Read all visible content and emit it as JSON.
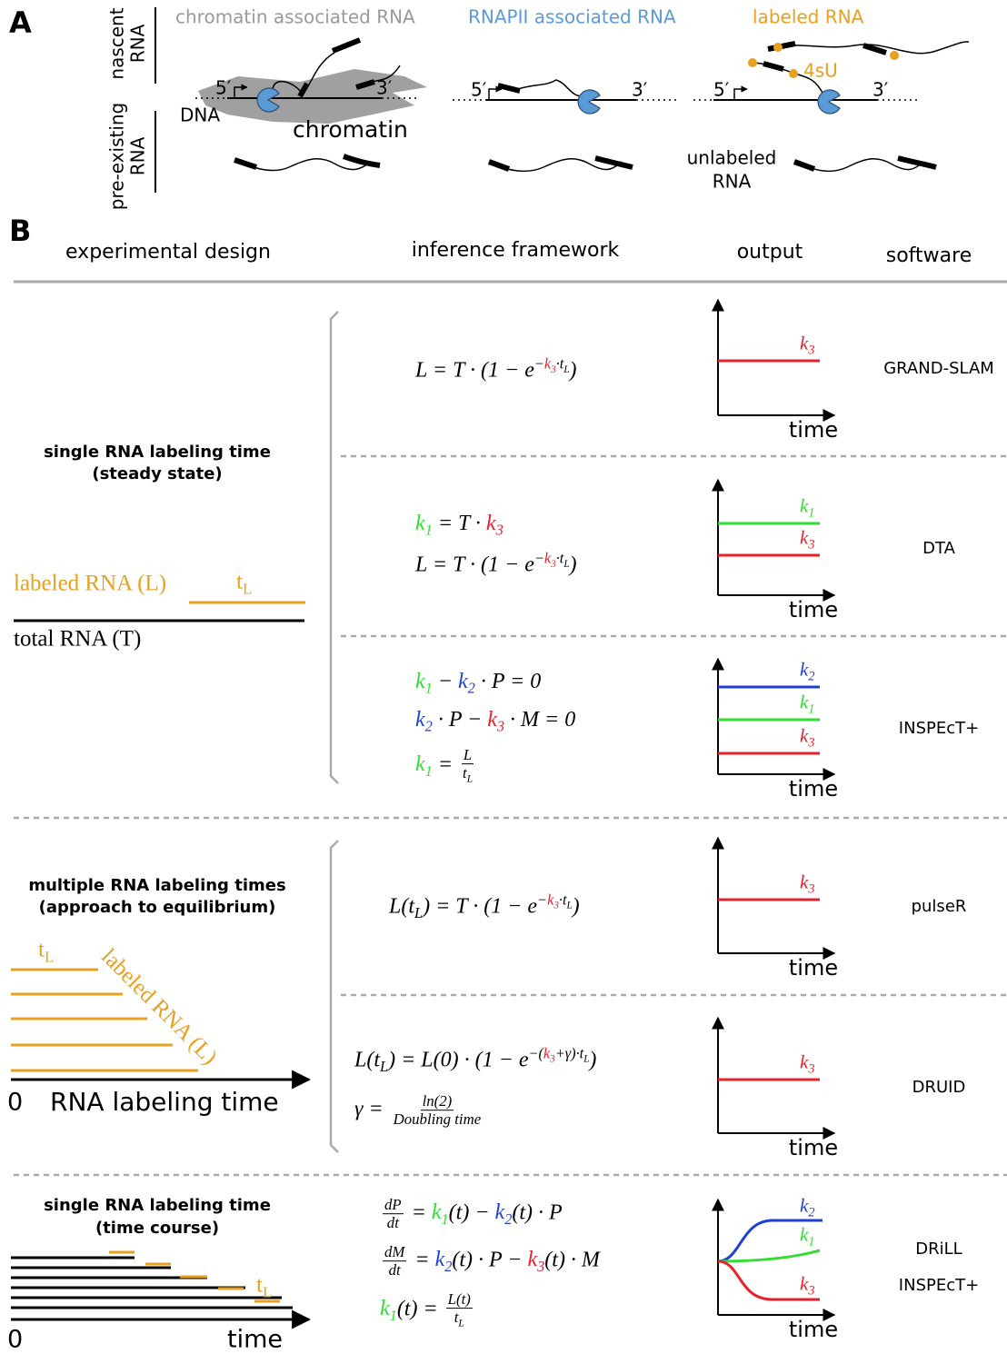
{
  "panel_a": {
    "label": "A",
    "rows": {
      "nascent": [
        "nascent",
        "RNA"
      ],
      "preexisting": [
        "pre-existing",
        "RNA"
      ]
    },
    "columns": [
      {
        "title": "chromatin associated RNA",
        "five": "5′",
        "three": "3′",
        "dna": "DNA",
        "chromatin": "chromatin"
      },
      {
        "title": "RNAPII associated RNA",
        "five": "5′",
        "three": "3′"
      },
      {
        "title": "labeled RNA",
        "five": "5′",
        "three": "3′",
        "label": "4sU",
        "unlabeled": [
          "unlabeled",
          "RNA"
        ]
      }
    ]
  },
  "panel_b": {
    "label": "B",
    "headers": [
      "experimental design",
      "inference framework",
      "output",
      "software"
    ],
    "sections": [
      {
        "design": {
          "title": [
            "single RNA labeling time",
            "(steady state)"
          ],
          "labeled": [
            "labeled RNA (",
            {
              "text": "L"
            },
            ")"
          ],
          "t_label": [
            {
              "text": "t",
              "sub": [
                "L"
              ]
            }
          ],
          "total": [
            "total RNA (",
            {
              "text": "T"
            },
            ")"
          ],
          "color": "#e8a020"
        },
        "models": [
          {
            "equations": [
              [
                "L = T · (1 − ",
                {
                  "text": "e",
                  "sup": [
                    "−",
                    {
                      "text": "k",
                      "sub": [
                        "3"
                      ],
                      "color": "#e8202a"
                    },
                    "·",
                    {
                      "text": "t",
                      "sub": [
                        "L"
                      ]
                    }
                  ]
                },
                ")"
              ]
            ],
            "outputs": [
              [
                {
                  "text": "k",
                  "sub": [
                    "3"
                  ],
                  "color": "#e8202a"
                }
              ]
            ],
            "axis": "time",
            "software": [
              "GRAND-SLAM"
            ]
          },
          {
            "equations": [
              [
                {
                  "text": "k",
                  "sub": [
                    "1"
                  ],
                  "color": "#33dd33"
                },
                " = T · ",
                {
                  "text": "k",
                  "sub": [
                    "3"
                  ],
                  "color": "#e8202a"
                }
              ],
              [
                "L = T · (1 − ",
                {
                  "text": "e",
                  "sup": [
                    "−",
                    {
                      "text": "k",
                      "sub": [
                        "3"
                      ],
                      "color": "#e8202a"
                    },
                    "·",
                    {
                      "text": "t",
                      "sub": [
                        "L"
                      ]
                    }
                  ]
                },
                ")"
              ]
            ],
            "outputs": [
              [
                {
                  "text": "k",
                  "sub": [
                    "1"
                  ],
                  "color": "#33dd33"
                }
              ],
              [
                {
                  "text": "k",
                  "sub": [
                    "3"
                  ],
                  "color": "#e8202a"
                }
              ]
            ],
            "axis": "time",
            "software": [
              "DTA"
            ]
          },
          {
            "equations": [
              [
                {
                  "text": "k",
                  "sub": [
                    "1"
                  ],
                  "color": "#33dd33"
                },
                " − ",
                {
                  "text": "k",
                  "sub": [
                    "2"
                  ],
                  "color": "#1f3fd6"
                },
                " · P = 0"
              ],
              [
                {
                  "text": "k",
                  "sub": [
                    "2"
                  ],
                  "color": "#1f3fd6"
                },
                " · P − ",
                {
                  "text": "k",
                  "sub": [
                    "3"
                  ],
                  "color": "#e8202a"
                },
                " · M = 0"
              ],
              [
                {
                  "text": "k",
                  "sub": [
                    "1"
                  ],
                  "color": "#33dd33"
                },
                " = ",
                {
                  "num": [
                    "L"
                  ],
                  "den": [
                    {
                      "text": "t",
                      "sub": [
                        "L"
                      ]
                    }
                  ]
                }
              ]
            ],
            "outputs": [
              [
                {
                  "text": "k",
                  "sub": [
                    "2"
                  ],
                  "color": "#1f3fd6"
                }
              ],
              [
                {
                  "text": "k",
                  "sub": [
                    "1"
                  ],
                  "color": "#33dd33"
                }
              ],
              [
                {
                  "text": "k",
                  "sub": [
                    "3"
                  ],
                  "color": "#e8202a"
                }
              ]
            ],
            "axis": "time",
            "software": [
              "INSPEcT+"
            ]
          }
        ]
      },
      {
        "design": {
          "title": [
            "multiple RNA labeling times",
            "(approach to equilibrium)"
          ],
          "t_label": [
            {
              "text": "t",
              "sub": [
                "L"
              ]
            }
          ],
          "labeled": [
            "labeled RNA (",
            {
              "text": "L"
            },
            ")"
          ],
          "zero": "0",
          "axis": "RNA labeling time",
          "color": "#e8a020"
        },
        "models": [
          {
            "equations": [
              [
                "L(",
                {
                  "text": "t",
                  "sub": [
                    "L"
                  ]
                },
                ") = T · (1 − ",
                {
                  "text": "e",
                  "sup": [
                    "−",
                    {
                      "text": "k",
                      "sub": [
                        "3"
                      ],
                      "color": "#e8202a"
                    },
                    "·",
                    {
                      "text": "t",
                      "sub": [
                        "L"
                      ]
                    }
                  ]
                },
                ")"
              ]
            ],
            "outputs": [
              [
                {
                  "text": "k",
                  "sub": [
                    "3"
                  ],
                  "color": "#e8202a"
                }
              ]
            ],
            "axis": "time",
            "software": [
              "pulseR"
            ]
          },
          {
            "equations": [
              [
                "L(",
                {
                  "text": "t",
                  "sub": [
                    "L"
                  ]
                },
                ") = L(0) · (1 − ",
                {
                  "text": "e",
                  "sup": [
                    "−(",
                    {
                      "text": "k",
                      "sub": [
                        "3"
                      ],
                      "color": "#e8202a"
                    },
                    "+γ)·",
                    {
                      "text": "t",
                      "sub": [
                        "L"
                      ]
                    }
                  ]
                },
                ")"
              ],
              [
                "γ = ",
                {
                  "num": [
                    "ln(2)"
                  ],
                  "den": [
                    "Doubling time"
                  ]
                }
              ]
            ],
            "outputs": [
              [
                {
                  "text": "k",
                  "sub": [
                    "3"
                  ],
                  "color": "#e8202a"
                }
              ]
            ],
            "axis": "time",
            "software": [
              "DRUID"
            ]
          }
        ]
      },
      {
        "design": {
          "title": [
            "single RNA labeling time",
            "(time course)"
          ],
          "t_label": [
            {
              "text": "t",
              "sub": [
                "L"
              ]
            }
          ],
          "zero": "0",
          "axis": "time",
          "color": "#e8a020"
        },
        "models": [
          {
            "equations": [
              [
                {
                  "num": [
                    "dP"
                  ],
                  "den": [
                    "dt"
                  ]
                },
                " = ",
                {
                  "text": "k",
                  "sub": [
                    "1"
                  ],
                  "color": "#33dd33"
                },
                "(t) − ",
                {
                  "text": "k",
                  "sub": [
                    "2"
                  ],
                  "color": "#1f3fd6"
                },
                "(t) · P"
              ],
              [
                {
                  "num": [
                    "dM"
                  ],
                  "den": [
                    "dt"
                  ]
                },
                " = ",
                {
                  "text": "k",
                  "sub": [
                    "2"
                  ],
                  "color": "#1f3fd6"
                },
                "(t) · P − ",
                {
                  "text": "k",
                  "sub": [
                    "3"
                  ],
                  "color": "#e8202a"
                },
                "(t) · M"
              ],
              [
                {
                  "text": "k",
                  "sub": [
                    "1"
                  ],
                  "color": "#33dd33"
                },
                "(t) = ",
                {
                  "num": [
                    "L(t)"
                  ],
                  "den": [
                    {
                      "text": "t",
                      "sub": [
                        "L"
                      ]
                    }
                  ]
                }
              ]
            ],
            "outputs": [
              [
                {
                  "text": "k",
                  "sub": [
                    "2"
                  ],
                  "color": "#1f3fd6"
                }
              ],
              [
                {
                  "text": "k",
                  "sub": [
                    "1"
                  ],
                  "color": "#33dd33"
                }
              ],
              [
                {
                  "text": "k",
                  "sub": [
                    "3"
                  ],
                  "color": "#e8202a"
                }
              ]
            ],
            "axis": "time",
            "software": [
              "DRiLL",
              "INSPEcT+"
            ]
          }
        ]
      }
    ]
  }
}
